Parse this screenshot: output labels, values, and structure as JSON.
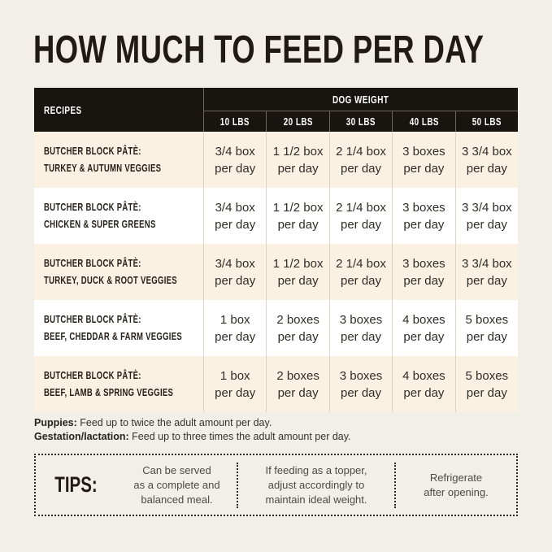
{
  "page": {
    "title": "HOW MUCH TO FEED PER DAY"
  },
  "colors": {
    "page_background": "#f2efe8",
    "header_background": "#18140f",
    "header_text": "#ffffff",
    "row_cream": "#faf1e2",
    "row_white": "#ffffff",
    "divider": "#dcd6c8",
    "title_text": "#1f1a15"
  },
  "table": {
    "recipes_header": "RECIPES",
    "group_header": "DOG WEIGHT",
    "weight_headers": [
      "10 LBS",
      "20 LBS",
      "30 LBS",
      "40 LBS",
      "50 LBS"
    ],
    "rows": [
      {
        "recipe_line1": "BUTCHER BLOCK PÂTÈ:",
        "recipe_line2": "TURKEY & AUTUMN VEGGIES",
        "values": [
          {
            "amount": "3/4 box",
            "unit": "per day"
          },
          {
            "amount": "1 1/2 box",
            "unit": "per day"
          },
          {
            "amount": "2 1/4 box",
            "unit": "per day"
          },
          {
            "amount": "3 boxes",
            "unit": "per day"
          },
          {
            "amount": "3 3/4 box",
            "unit": "per day"
          }
        ]
      },
      {
        "recipe_line1": "BUTCHER BLOCK PÂTÈ:",
        "recipe_line2": "CHICKEN & SUPER GREENS",
        "values": [
          {
            "amount": "3/4 box",
            "unit": "per day"
          },
          {
            "amount": "1 1/2 box",
            "unit": "per day"
          },
          {
            "amount": "2 1/4 box",
            "unit": "per day"
          },
          {
            "amount": "3 boxes",
            "unit": "per day"
          },
          {
            "amount": "3 3/4 box",
            "unit": "per day"
          }
        ]
      },
      {
        "recipe_line1": "BUTCHER BLOCK PÂTÈ:",
        "recipe_line2": "TURKEY, DUCK & ROOT VEGGIES",
        "values": [
          {
            "amount": "3/4 box",
            "unit": "per day"
          },
          {
            "amount": "1 1/2 box",
            "unit": "per day"
          },
          {
            "amount": "2 1/4 box",
            "unit": "per day"
          },
          {
            "amount": "3 boxes",
            "unit": "per day"
          },
          {
            "amount": "3 3/4 box",
            "unit": "per day"
          }
        ]
      },
      {
        "recipe_line1": "BUTCHER BLOCK PÂTÈ:",
        "recipe_line2": "BEEF, CHEDDAR & FARM VEGGIES",
        "values": [
          {
            "amount": "1 box",
            "unit": "per day"
          },
          {
            "amount": "2 boxes",
            "unit": "per day"
          },
          {
            "amount": "3 boxes",
            "unit": "per day"
          },
          {
            "amount": "4 boxes",
            "unit": "per day"
          },
          {
            "amount": "5 boxes",
            "unit": "per day"
          }
        ]
      },
      {
        "recipe_line1": "BUTCHER BLOCK PÂTÈ:",
        "recipe_line2": "BEEF, LAMB & SPRING VEGGIES",
        "values": [
          {
            "amount": "1 box",
            "unit": "per day"
          },
          {
            "amount": "2 boxes",
            "unit": "per day"
          },
          {
            "amount": "3 boxes",
            "unit": "per day"
          },
          {
            "amount": "4 boxes",
            "unit": "per day"
          },
          {
            "amount": "5 boxes",
            "unit": "per day"
          }
        ]
      }
    ]
  },
  "footnotes": [
    {
      "label": "Puppies:",
      "text": " Feed up to twice the adult amount per day."
    },
    {
      "label": "Gestation/lactation:",
      "text": " Feed up to three times the adult amount per day."
    }
  ],
  "tips": {
    "label": "TIPS:",
    "items": [
      {
        "lines": [
          "Can be served",
          "as a complete and",
          "balanced meal."
        ]
      },
      {
        "lines": [
          "If feeding as a topper,",
          "adjust accordingly to",
          "maintain ideal weight."
        ]
      },
      {
        "lines": [
          "Refrigerate",
          "after opening."
        ]
      }
    ]
  }
}
